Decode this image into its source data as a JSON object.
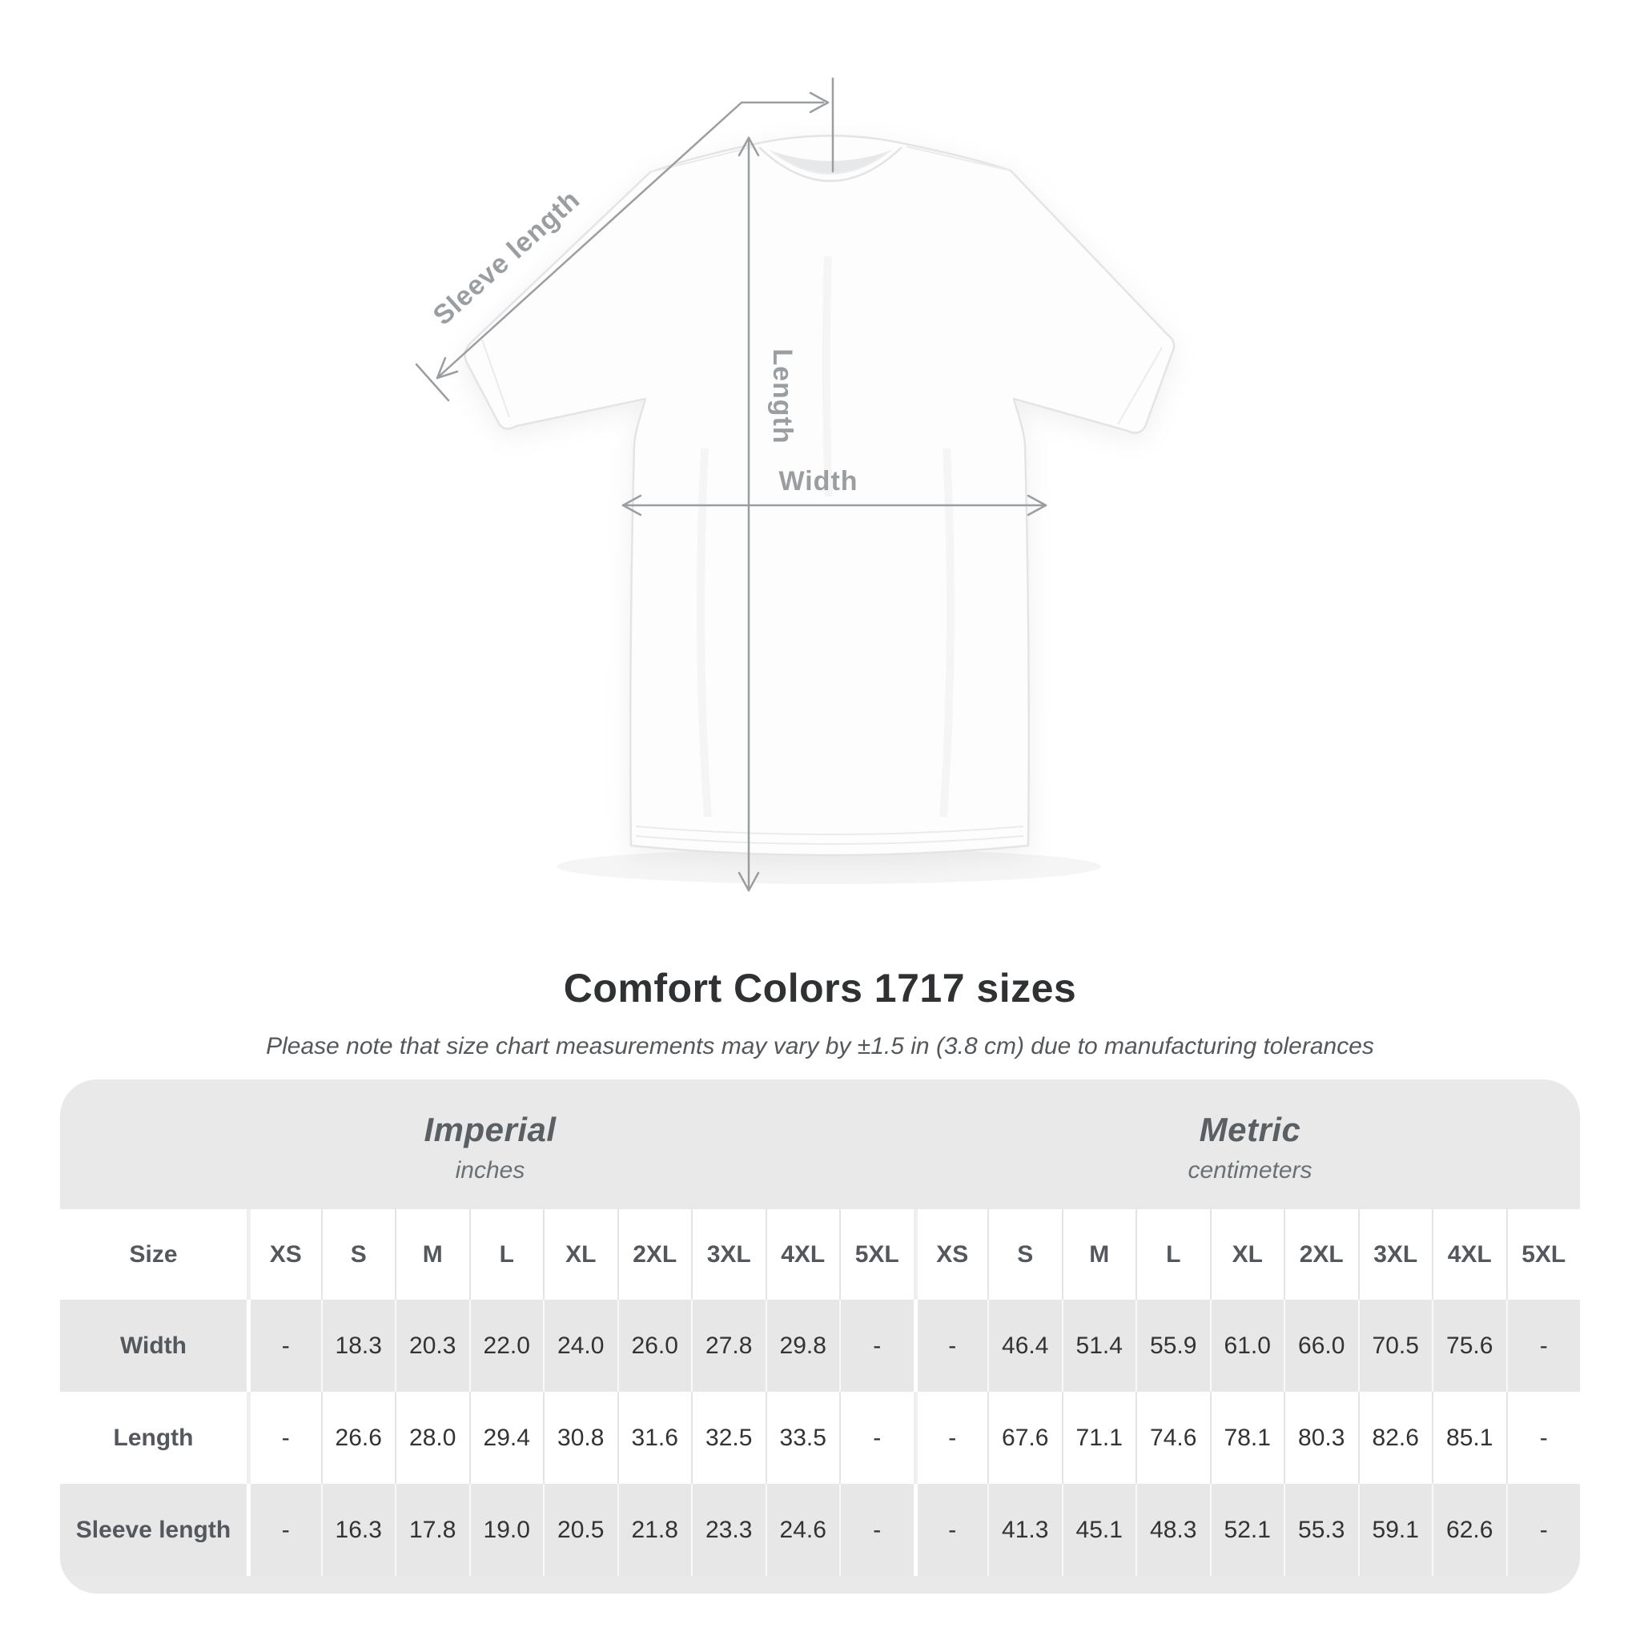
{
  "diagram": {
    "sleeve_length_label": "Sleeve length",
    "length_label": "Length",
    "width_label": "Width"
  },
  "colors": {
    "table_background": "#e9e9e9",
    "annotation_gray": "#9b9ea1",
    "header_text": "#54585c",
    "value_text": "#333333"
  },
  "chart_data": {
    "type": "table",
    "title": "Comfort Colors 1717 sizes",
    "subtitle": "Please note that size chart measurements may vary by ±1.5 in (3.8 cm) due to manufacturing tolerances",
    "header_label": "Size",
    "column_groups": [
      {
        "label": "Imperial",
        "sublabel": "inches"
      },
      {
        "label": "Metric",
        "sublabel": "centimeters"
      }
    ],
    "columns": [
      "XS",
      "S",
      "M",
      "L",
      "XL",
      "2XL",
      "3XL",
      "4XL",
      "5XL"
    ],
    "rows": [
      {
        "label": "Width",
        "imperial": [
          "-",
          "18.3",
          "20.3",
          "22.0",
          "24.0",
          "26.0",
          "27.8",
          "29.8",
          "-"
        ],
        "metric": [
          "-",
          "46.4",
          "51.4",
          "55.9",
          "61.0",
          "66.0",
          "70.5",
          "75.6",
          "-"
        ]
      },
      {
        "label": "Length",
        "imperial": [
          "-",
          "26.6",
          "28.0",
          "29.4",
          "30.8",
          "31.6",
          "32.5",
          "33.5",
          "-"
        ],
        "metric": [
          "-",
          "67.6",
          "71.1",
          "74.6",
          "78.1",
          "80.3",
          "82.6",
          "85.1",
          "-"
        ]
      },
      {
        "label": "Sleeve length",
        "imperial": [
          "-",
          "16.3",
          "17.8",
          "19.0",
          "20.5",
          "21.8",
          "23.3",
          "24.6",
          "-"
        ],
        "metric": [
          "-",
          "41.3",
          "45.1",
          "48.3",
          "52.1",
          "55.3",
          "59.1",
          "62.6",
          "-"
        ]
      }
    ]
  }
}
